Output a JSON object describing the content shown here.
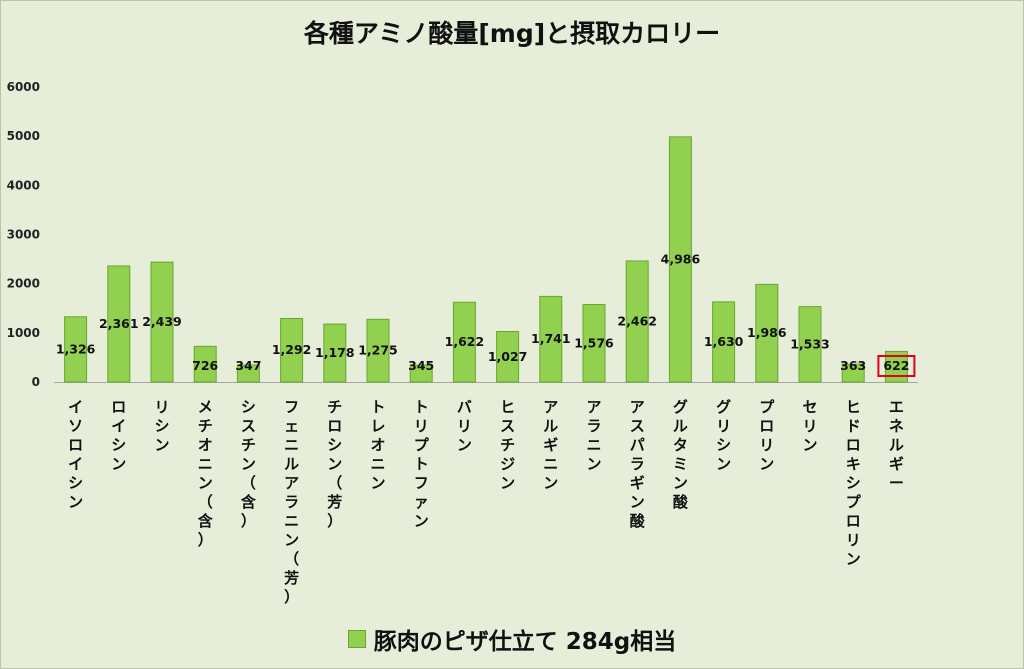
{
  "chart_data": {
    "type": "bar",
    "title": "各種アミノ酸量[mg]と摂取カロリー",
    "ylim": [
      0,
      6000
    ],
    "yticks": [
      0,
      1000,
      2000,
      3000,
      4000,
      5000,
      6000
    ],
    "ytick_labels": [
      "0",
      "1000",
      "2000",
      "3000",
      "4000",
      "5000",
      "6000"
    ],
    "grid": false,
    "legend": "bottom",
    "categories": [
      "イソロイシン",
      "ロイシン",
      "リシン",
      "メチオニン（含）",
      "シスチン（含）",
      "フェニルアラニン（芳）",
      "チロシン（芳）",
      "トレオニン",
      "トリプトファン",
      "バリン",
      "ヒスチジン",
      "アルギニン",
      "アラニン",
      "アスパラギン酸",
      "グルタミン酸",
      "グリシン",
      "プロリン",
      "セリン",
      "ヒドロキシプロリン",
      "エネルギー"
    ],
    "series": [
      {
        "name": "豚肉のピザ仕立て 284g相当",
        "values": [
          1326,
          2361,
          2439,
          726,
          347,
          1292,
          1178,
          1275,
          345,
          1622,
          1027,
          1741,
          1576,
          2462,
          4986,
          1630,
          1986,
          1533,
          363,
          622
        ],
        "data_labels": [
          "1,326",
          "2,361",
          "2,439",
          "726",
          "347",
          "1,292",
          "1,178",
          "1,275",
          "345",
          "1,622",
          "1,027",
          "1,741",
          "1,576",
          "2,462",
          "4,986",
          "1,630",
          "1,986",
          "1,533",
          "363",
          "622"
        ]
      }
    ],
    "highlighted_category": "エネルギー",
    "colors": {
      "bar": "#92d050",
      "bar_border": "#6aa52e",
      "highlight_box": "#e3001b",
      "background": "#e6eed9"
    }
  }
}
